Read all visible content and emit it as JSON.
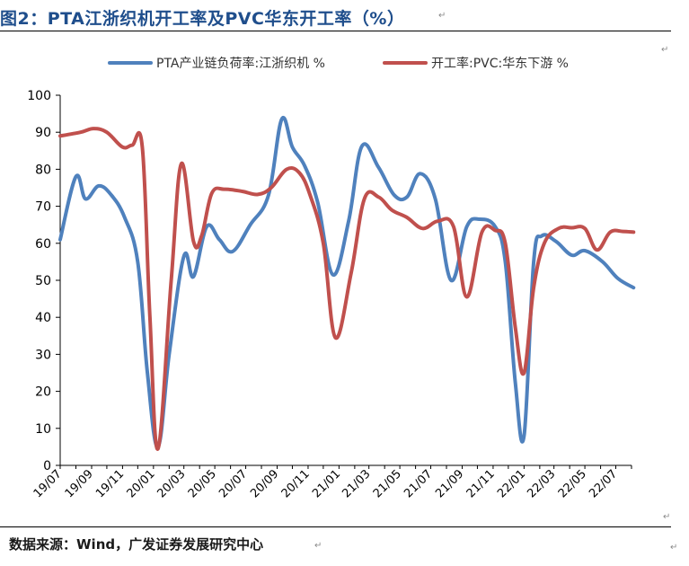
{
  "figure": {
    "title": "图2：PTA江浙织机开工率及PVC华东开工率（%）",
    "source": "数据来源：Wind，广发证券发展研究中心",
    "paragraph_mark": "↵"
  },
  "chart_data": {
    "type": "line",
    "title": "",
    "xlabel": "",
    "ylabel": "",
    "ylim": [
      0,
      100
    ],
    "yticks": [
      0,
      10,
      20,
      30,
      40,
      50,
      60,
      70,
      80,
      90,
      100
    ],
    "x_labels": [
      "19/07",
      "19/09",
      "19/11",
      "20/01",
      "20/03",
      "20/05",
      "20/07",
      "20/09",
      "20/11",
      "21/01",
      "21/03",
      "21/05",
      "21/07",
      "21/09",
      "21/11",
      "22/01",
      "22/03",
      "22/05",
      "22/07"
    ],
    "x_range": [
      "2019-07",
      "2022-08"
    ],
    "legend_position": "top",
    "grid": false,
    "series": [
      {
        "name": "PTA产业链负荷率:江浙织机 %",
        "color": "#4f81bd",
        "points": [
          [
            "2019-07-01",
            61
          ],
          [
            "2019-08-01",
            78
          ],
          [
            "2019-08-20",
            72
          ],
          [
            "2019-09-15",
            75.5
          ],
          [
            "2019-10-10",
            73
          ],
          [
            "2019-11-05",
            67
          ],
          [
            "2019-12-01",
            55
          ],
          [
            "2019-12-20",
            25
          ],
          [
            "2020-01-10",
            5
          ],
          [
            "2020-02-01",
            30
          ],
          [
            "2020-03-01",
            56.5
          ],
          [
            "2020-03-20",
            51
          ],
          [
            "2020-04-15",
            64.5
          ],
          [
            "2020-05-10",
            61
          ],
          [
            "2020-06-05",
            57.8
          ],
          [
            "2020-07-10",
            65
          ],
          [
            "2020-08-15",
            73
          ],
          [
            "2020-09-10",
            93.5
          ],
          [
            "2020-10-01",
            86
          ],
          [
            "2020-10-25",
            81
          ],
          [
            "2020-11-20",
            71
          ],
          [
            "2020-12-20",
            51.5
          ],
          [
            "2021-01-20",
            66
          ],
          [
            "2021-02-15",
            86.2
          ],
          [
            "2021-03-20",
            80.5
          ],
          [
            "2021-04-20",
            73
          ],
          [
            "2021-05-15",
            72.5
          ],
          [
            "2021-06-10",
            78.8
          ],
          [
            "2021-07-10",
            72
          ],
          [
            "2021-08-10",
            50
          ],
          [
            "2021-09-10",
            64.5
          ],
          [
            "2021-10-05",
            66.5
          ],
          [
            "2021-11-05",
            64.5
          ],
          [
            "2021-11-25",
            55
          ],
          [
            "2021-12-15",
            22
          ],
          [
            "2022-01-01",
            8
          ],
          [
            "2022-01-20",
            55
          ],
          [
            "2022-02-05",
            62
          ],
          [
            "2022-03-05",
            60.5
          ],
          [
            "2022-04-05",
            56.8
          ],
          [
            "2022-05-01",
            58
          ],
          [
            "2022-06-05",
            55
          ],
          [
            "2022-07-05",
            50.5
          ],
          [
            "2022-08-05",
            48
          ]
        ]
      },
      {
        "name": "开工率:PVC:华东下游 %",
        "color": "#c0504d",
        "points": [
          [
            "2019-07-01",
            89
          ],
          [
            "2019-08-10",
            90
          ],
          [
            "2019-09-05",
            91
          ],
          [
            "2019-10-01",
            90
          ],
          [
            "2019-11-01",
            86
          ],
          [
            "2019-11-20",
            86.5
          ],
          [
            "2019-12-10",
            86
          ],
          [
            "2019-12-25",
            40
          ],
          [
            "2020-01-10",
            4.5
          ],
          [
            "2020-02-05",
            50
          ],
          [
            "2020-02-25",
            81.5
          ],
          [
            "2020-03-20",
            60.5
          ],
          [
            "2020-04-05",
            62
          ],
          [
            "2020-04-25",
            73.5
          ],
          [
            "2020-05-20",
            74.6
          ],
          [
            "2020-06-25",
            74
          ],
          [
            "2020-07-25",
            73.2
          ],
          [
            "2020-08-20",
            75
          ],
          [
            "2020-09-20",
            80
          ],
          [
            "2020-10-15",
            79
          ],
          [
            "2020-11-05",
            73
          ],
          [
            "2020-12-01",
            60
          ],
          [
            "2020-12-25",
            34.5
          ],
          [
            "2021-01-25",
            52
          ],
          [
            "2021-02-20",
            72
          ],
          [
            "2021-03-20",
            72.5
          ],
          [
            "2021-04-15",
            69
          ],
          [
            "2021-05-15",
            67
          ],
          [
            "2021-06-15",
            64
          ],
          [
            "2021-07-15",
            66
          ],
          [
            "2021-08-15",
            64.5
          ],
          [
            "2021-09-10",
            45.5
          ],
          [
            "2021-10-10",
            63
          ],
          [
            "2021-11-05",
            63.5
          ],
          [
            "2021-11-25",
            60
          ],
          [
            "2021-12-15",
            37
          ],
          [
            "2022-01-01",
            25
          ],
          [
            "2022-01-20",
            48
          ],
          [
            "2022-02-10",
            60
          ],
          [
            "2022-03-10",
            64
          ],
          [
            "2022-04-05",
            64.2
          ],
          [
            "2022-05-01",
            64
          ],
          [
            "2022-05-25",
            58.2
          ],
          [
            "2022-06-20",
            63
          ],
          [
            "2022-07-15",
            63.2
          ],
          [
            "2022-08-05",
            63
          ]
        ]
      }
    ]
  }
}
